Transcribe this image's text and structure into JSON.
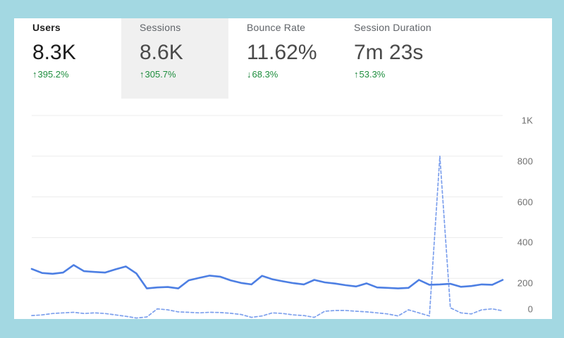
{
  "page": {
    "background_color": "#a3d8e2",
    "card_color": "#ffffff"
  },
  "metrics": [
    {
      "id": "users",
      "label": "Users",
      "value": "8.3K",
      "delta": "395.2%",
      "direction": "up",
      "active": true,
      "highlighted": false
    },
    {
      "id": "sessions",
      "label": "Sessions",
      "value": "8.6K",
      "delta": "305.7%",
      "direction": "up",
      "active": false,
      "highlighted": true
    },
    {
      "id": "bounce-rate",
      "label": "Bounce Rate",
      "value": "11.62%",
      "delta": "68.3%",
      "direction": "down",
      "active": false,
      "highlighted": false
    },
    {
      "id": "session-duration",
      "label": "Session Duration",
      "value": "7m 23s",
      "delta": "53.3%",
      "direction": "up",
      "active": false,
      "highlighted": false
    }
  ],
  "colors": {
    "delta_green": "#1e8e3e",
    "arrow_green": "#188038",
    "solid_line_blue": "#4d7fe3",
    "dashed_line_blue": "#7da0ed",
    "gridline": "#ececec",
    "tick_label": "#6f6f6f",
    "highlight_gray": "#f0f0f0"
  },
  "chart_data": {
    "type": "line",
    "title": "",
    "xlabel": "",
    "ylabel": "",
    "ylim": [
      0,
      1000
    ],
    "grid": "horizontal",
    "legend": "none",
    "x_axis_labels_visible": false,
    "y_ticks": [
      {
        "label": "1K",
        "value": 1000
      },
      {
        "label": "800",
        "value": 800
      },
      {
        "label": "600",
        "value": 600
      },
      {
        "label": "400",
        "value": 400
      },
      {
        "label": "200",
        "value": 200
      },
      {
        "label": "0",
        "value": 0
      }
    ],
    "series": [
      {
        "name": "current",
        "style": "solid",
        "color": "#4d7fe3",
        "values": [
          246,
          226,
          222,
          228,
          265,
          235,
          231,
          228,
          244,
          258,
          224,
          150,
          155,
          157,
          150,
          190,
          202,
          213,
          208,
          190,
          177,
          170,
          212,
          195,
          185,
          176,
          170,
          192,
          180,
          174,
          166,
          160,
          175,
          155,
          153,
          150,
          153,
          192,
          168,
          170,
          173,
          158,
          162,
          170,
          168,
          192
        ]
      },
      {
        "name": "previous",
        "style": "dashed",
        "color": "#7da0ed",
        "values": [
          17,
          20,
          27,
          30,
          33,
          27,
          30,
          27,
          20,
          13,
          5,
          10,
          50,
          45,
          35,
          33,
          30,
          33,
          32,
          28,
          22,
          8,
          15,
          30,
          27,
          20,
          17,
          8,
          38,
          42,
          42,
          38,
          35,
          30,
          25,
          15,
          45,
          30,
          15,
          800,
          55,
          30,
          25,
          45,
          50,
          40
        ]
      }
    ]
  }
}
